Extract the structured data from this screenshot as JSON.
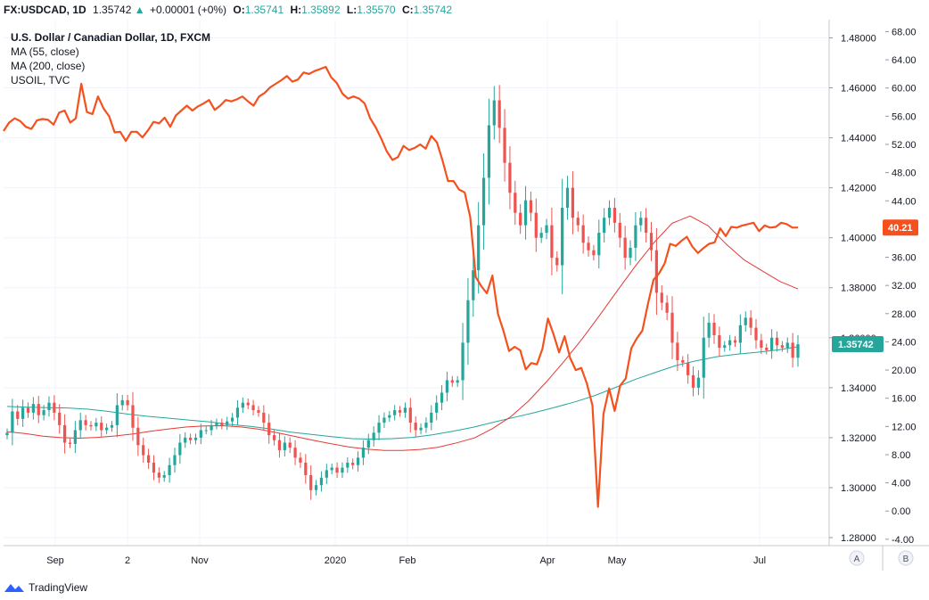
{
  "header": {
    "symbol": "FX:USDCAD, 1D",
    "last": "1.35742",
    "change": "+0.00001 (+0%)",
    "o_label": "O:",
    "o_value": "1.35741",
    "h_label": "H:",
    "h_value": "1.35892",
    "l_label": "L:",
    "l_value": "1.35570",
    "c_label": "C:",
    "c_value": "1.35742"
  },
  "legend": {
    "title": "U.S. Dollar / Canadian Dollar, 1D, FXCM",
    "ma55": "MA (55, close)",
    "ma200": "MA (200, close)",
    "oil": "USOIL, TVC"
  },
  "footer": {
    "brand": "TradingView"
  },
  "chart_data": {
    "type": "candlestick",
    "price_axis": {
      "ticks": [
        "1.48000",
        "1.46000",
        "1.44000",
        "1.42000",
        "1.40000",
        "1.38000",
        "1.36000",
        "1.34000",
        "1.32000",
        "1.30000",
        "1.28000"
      ],
      "ylim": [
        1.2768,
        1.4873
      ]
    },
    "oil_axis": {
      "ticks": [
        "68.00",
        "64.00",
        "60.00",
        "56.00",
        "52.00",
        "48.00",
        "44.00",
        "40.00",
        "36.00",
        "32.00",
        "28.00",
        "24.00",
        "20.00",
        "16.00",
        "12.00",
        "8.00",
        "4.00",
        "0.00",
        "-4.00"
      ],
      "ylim": [
        -4.9,
        69.7
      ]
    },
    "x_ticks": [
      "Sep",
      "2",
      "Nov",
      "2020",
      "Feb",
      "Apr",
      "May",
      "Jul"
    ],
    "price_label": "1.35742",
    "oil_label": "40.21",
    "buttons": [
      "A",
      "B"
    ],
    "usdcad_close": [
      1.322,
      1.3305,
      1.3275,
      1.332,
      1.33,
      1.3335,
      1.329,
      1.331,
      1.334,
      1.33,
      1.325,
      1.318,
      1.3175,
      1.323,
      1.327,
      1.325,
      1.3245,
      1.326,
      1.323,
      1.324,
      1.325,
      1.333,
      1.335,
      1.333,
      1.324,
      1.317,
      1.313,
      1.31,
      1.306,
      1.304,
      1.305,
      1.309,
      1.313,
      1.318,
      1.32,
      1.319,
      1.32,
      1.323,
      1.323,
      1.325,
      1.326,
      1.325,
      1.3265,
      1.328,
      1.332,
      1.334,
      1.333,
      1.331,
      1.33,
      1.326,
      1.321,
      1.319,
      1.315,
      1.318,
      1.316,
      1.312,
      1.31,
      1.305,
      1.299,
      1.301,
      1.304,
      1.307,
      1.308,
      1.306,
      1.308,
      1.31,
      1.309,
      1.312,
      1.316,
      1.319,
      1.322,
      1.326,
      1.328,
      1.329,
      1.331,
      1.33,
      1.332,
      1.326,
      1.323,
      1.324,
      1.326,
      1.33,
      1.334,
      1.338,
      1.343,
      1.342,
      1.343,
      1.358,
      1.375,
      1.387,
      1.405,
      1.424,
      1.445,
      1.455,
      1.444,
      1.43,
      1.418,
      1.41,
      1.405,
      1.415,
      1.41,
      1.4,
      1.402,
      1.405,
      1.392,
      1.389,
      1.412,
      1.42,
      1.408,
      1.405,
      1.398,
      1.395,
      1.393,
      1.402,
      1.408,
      1.412,
      1.406,
      1.4,
      1.392,
      1.396,
      1.405,
      1.408,
      1.402,
      1.395,
      1.378,
      1.374,
      1.37,
      1.358,
      1.351,
      1.35,
      1.345,
      1.34,
      1.344,
      1.36,
      1.366,
      1.361,
      1.356,
      1.357,
      1.359,
      1.358,
      1.365,
      1.368,
      1.364,
      1.359,
      1.356,
      1.355,
      1.36,
      1.357,
      1.356,
      1.358,
      1.352,
      1.3574
    ],
    "usoil": [
      53.9,
      55.1,
      55.7,
      55.3,
      54.5,
      54.2,
      55.4,
      55.6,
      55.5,
      54.8,
      56.5,
      56.8,
      55.1,
      55.7,
      60.6,
      56.6,
      56.3,
      58.8,
      57.1,
      56.0,
      53.7,
      53.8,
      52.5,
      53.8,
      53.8,
      53.0,
      54.0,
      55.2,
      55.0,
      55.8,
      54.5,
      56.1,
      56.8,
      57.5,
      56.8,
      57.4,
      57.8,
      58.3,
      56.9,
      57.5,
      58.3,
      58.1,
      58.4,
      58.8,
      58.1,
      57.5,
      58.8,
      59.3,
      60.1,
      60.6,
      61.1,
      61.7,
      60.9,
      61.2,
      62.2,
      62.0,
      62.4,
      62.7,
      63.0,
      61.5,
      60.7,
      59.2,
      58.5,
      58.8,
      58.5,
      57.8,
      55.7,
      54.4,
      52.8,
      51.0,
      49.8,
      50.2,
      51.8,
      51.2,
      51.5,
      52.0,
      51.4,
      53.2,
      52.3,
      49.8,
      46.8,
      46.8,
      45.6,
      45.2,
      41.7,
      33.2,
      31.9,
      30.9,
      33.4,
      28.0,
      25.5,
      22.7,
      23.3,
      22.8,
      20.1,
      21.0,
      20.8,
      23.0,
      27.3,
      25.1,
      22.5,
      24.8,
      21.7,
      20.0,
      20.3,
      18.1,
      15.0,
      0.6,
      13.8,
      17.4,
      14.2,
      17.8,
      18.8,
      23.1,
      24.5,
      25.6,
      29.4,
      32.8,
      33.7,
      35.1,
      37.9,
      37.6,
      38.3,
      38.9,
      37.5,
      36.6,
      37.3,
      37.9,
      38.1,
      40.1,
      39.0,
      40.3,
      40.2,
      40.5,
      40.7,
      40.9,
      39.7,
      40.5,
      40.2,
      40.3,
      40.9,
      40.7,
      40.2,
      40.21
    ],
    "ma55": [
      1.3224,
      1.3217,
      1.3206,
      1.32,
      1.3198,
      1.3201,
      1.3207,
      1.3215,
      1.3226,
      1.3235,
      1.3243,
      1.3247,
      1.3248,
      1.3243,
      1.3234,
      1.322,
      1.3205,
      1.319,
      1.3176,
      1.3163,
      1.3154,
      1.3149,
      1.3149,
      1.3153,
      1.3162,
      1.3179,
      1.3199,
      1.3236,
      1.3283,
      1.3346,
      1.3423,
      1.3506,
      1.3596,
      1.3693,
      1.3793,
      1.3891,
      1.3981,
      1.4058,
      1.4087,
      1.4048,
      1.3975,
      1.3912,
      1.3868,
      1.3825,
      1.3795
    ],
    "ma200": [
      1.3325,
      1.3322,
      1.332,
      1.3319,
      1.3314,
      1.3305,
      1.3294,
      1.3285,
      1.3278,
      1.327,
      1.3263,
      1.3253,
      1.3245,
      1.3235,
      1.3222,
      1.3213,
      1.3204,
      1.3196,
      1.3194,
      1.3196,
      1.3201,
      1.3212,
      1.3226,
      1.3242,
      1.3262,
      1.3281,
      1.33,
      1.3321,
      1.3343,
      1.3369,
      1.3401,
      1.3434,
      1.3462,
      1.3489,
      1.3508,
      1.3524,
      1.3534,
      1.3542,
      1.3551,
      1.3564
    ]
  }
}
